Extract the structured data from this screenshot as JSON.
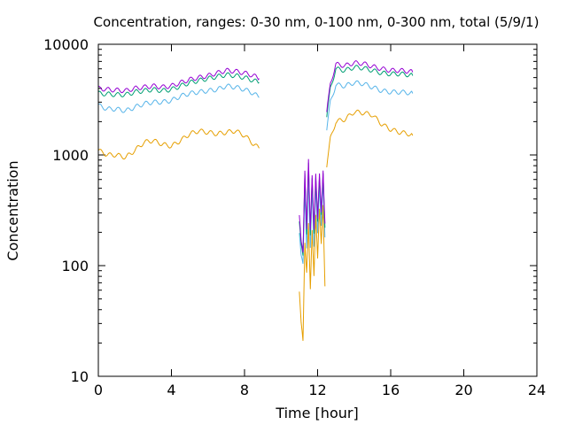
{
  "chart_data": {
    "type": "line",
    "title": "Concentration, ranges: 0-30 nm, 0-100 nm, 0-300 nm, total (5/9/1)",
    "xlabel": "Time [hour]",
    "ylabel": "Concentration",
    "xlim": [
      0,
      24
    ],
    "ylim": [
      10,
      10000
    ],
    "yscale": "log",
    "grid": false,
    "legend": "none",
    "x_ticks": [
      "0",
      "4",
      "8",
      "12",
      "16",
      "20",
      "24"
    ],
    "y_ticks": [
      "10",
      "100",
      "1000",
      "10000"
    ],
    "series": [
      {
        "color": "#e69f00",
        "segments": [
          [
            [
              0,
              1100
            ],
            [
              0.5,
              1000
            ],
            [
              1,
              1000
            ],
            [
              1.5,
              950
            ],
            [
              2,
              1100
            ],
            [
              2.5,
              1300
            ],
            [
              3,
              1350
            ],
            [
              3.5,
              1250
            ],
            [
              4,
              1200
            ],
            [
              4.5,
              1350
            ],
            [
              5,
              1550
            ],
            [
              5.5,
              1650
            ],
            [
              6,
              1600
            ],
            [
              6.5,
              1550
            ],
            [
              7,
              1600
            ],
            [
              7.5,
              1650
            ],
            [
              8,
              1500
            ],
            [
              8.5,
              1250
            ],
            [
              8.8,
              1150
            ]
          ],
          [
            [
              11.0,
              60
            ],
            [
              11.1,
              30
            ],
            [
              11.2,
              20
            ],
            [
              11.3,
              160
            ],
            [
              11.4,
              90
            ],
            [
              11.5,
              250
            ],
            [
              11.6,
              60
            ],
            [
              11.7,
              200
            ],
            [
              11.8,
              80
            ],
            [
              11.9,
              300
            ],
            [
              12.0,
              120
            ],
            [
              12.1,
              320
            ],
            [
              12.2,
              150
            ],
            [
              12.3,
              350
            ],
            [
              12.4,
              65
            ]
          ],
          [
            [
              12.5,
              800
            ],
            [
              12.7,
              1400
            ],
            [
              13.0,
              2000
            ],
            [
              13.5,
              2100
            ],
            [
              14,
              2450
            ],
            [
              14.5,
              2400
            ],
            [
              15,
              2300
            ],
            [
              15.5,
              1900
            ],
            [
              16,
              1700
            ],
            [
              16.5,
              1600
            ],
            [
              17,
              1550
            ],
            [
              17.2,
              1500
            ]
          ]
        ]
      },
      {
        "color": "#56b4e9",
        "segments": [
          [
            [
              0,
              2800
            ],
            [
              0.5,
              2600
            ],
            [
              1,
              2600
            ],
            [
              1.5,
              2500
            ],
            [
              2,
              2700
            ],
            [
              2.5,
              2900
            ],
            [
              3,
              3000
            ],
            [
              3.5,
              3000
            ],
            [
              4,
              3100
            ],
            [
              4.5,
              3400
            ],
            [
              5,
              3600
            ],
            [
              5.5,
              3700
            ],
            [
              6,
              3800
            ],
            [
              6.5,
              3900
            ],
            [
              7,
              4200
            ],
            [
              7.5,
              4100
            ],
            [
              8,
              3900
            ],
            [
              8.5,
              3600
            ],
            [
              8.8,
              3300
            ]
          ],
          [
            [
              11.0,
              200
            ],
            [
              11.1,
              120
            ],
            [
              11.2,
              100
            ],
            [
              11.3,
              500
            ],
            [
              11.4,
              150
            ],
            [
              11.5,
              700
            ],
            [
              11.6,
              140
            ],
            [
              11.7,
              500
            ],
            [
              11.8,
              150
            ],
            [
              11.9,
              550
            ],
            [
              12.0,
              200
            ],
            [
              12.1,
              500
            ],
            [
              12.2,
              220
            ],
            [
              12.3,
              600
            ],
            [
              12.4,
              180
            ]
          ],
          [
            [
              12.5,
              1700
            ],
            [
              12.7,
              3000
            ],
            [
              13.0,
              4300
            ],
            [
              13.5,
              4200
            ],
            [
              14,
              4500
            ],
            [
              14.5,
              4400
            ],
            [
              15,
              4100
            ],
            [
              15.5,
              3800
            ],
            [
              16,
              3700
            ],
            [
              16.5,
              3700
            ],
            [
              17,
              3650
            ],
            [
              17.2,
              3600
            ]
          ]
        ]
      },
      {
        "color": "#009e73",
        "segments": [
          [
            [
              0,
              3600
            ],
            [
              0.5,
              3550
            ],
            [
              1,
              3500
            ],
            [
              1.5,
              3500
            ],
            [
              2,
              3700
            ],
            [
              2.5,
              3800
            ],
            [
              3,
              3900
            ],
            [
              3.5,
              3800
            ],
            [
              4,
              3900
            ],
            [
              4.5,
              4200
            ],
            [
              5,
              4500
            ],
            [
              5.5,
              4700
            ],
            [
              6,
              4900
            ],
            [
              6.5,
              5100
            ],
            [
              7,
              5300
            ],
            [
              7.5,
              5200
            ],
            [
              8,
              5000
            ],
            [
              8.5,
              4700
            ],
            [
              8.8,
              4500
            ]
          ],
          [
            [
              11.0,
              250
            ],
            [
              11.1,
              150
            ],
            [
              11.2,
              120
            ],
            [
              11.3,
              700
            ],
            [
              11.4,
              200
            ],
            [
              11.5,
              850
            ],
            [
              11.6,
              180
            ],
            [
              11.7,
              600
            ],
            [
              11.8,
              200
            ],
            [
              11.9,
              650
            ],
            [
              12.0,
              250
            ],
            [
              12.1,
              600
            ],
            [
              12.2,
              280
            ],
            [
              12.3,
              700
            ],
            [
              12.4,
              220
            ]
          ],
          [
            [
              12.5,
              2200
            ],
            [
              12.7,
              4000
            ],
            [
              13.0,
              6000
            ],
            [
              13.5,
              5800
            ],
            [
              14,
              6200
            ],
            [
              14.5,
              6100
            ],
            [
              15,
              5800
            ],
            [
              15.5,
              5500
            ],
            [
              16,
              5400
            ],
            [
              16.5,
              5400
            ],
            [
              17,
              5300
            ],
            [
              17.2,
              5200
            ]
          ]
        ]
      },
      {
        "color": "#9400d3",
        "segments": [
          [
            [
              0,
              4000
            ],
            [
              0.5,
              3900
            ],
            [
              1,
              3850
            ],
            [
              1.5,
              3800
            ],
            [
              2,
              4000
            ],
            [
              2.5,
              4100
            ],
            [
              3,
              4200
            ],
            [
              3.5,
              4100
            ],
            [
              4,
              4200
            ],
            [
              4.5,
              4500
            ],
            [
              5,
              4800
            ],
            [
              5.5,
              5000
            ],
            [
              6,
              5200
            ],
            [
              6.5,
              5500
            ],
            [
              7,
              5800
            ],
            [
              7.5,
              5700
            ],
            [
              8,
              5500
            ],
            [
              8.5,
              5200
            ],
            [
              8.8,
              4900
            ]
          ],
          [
            [
              11.0,
              280
            ],
            [
              11.1,
              160
            ],
            [
              11.2,
              130
            ],
            [
              11.3,
              750
            ],
            [
              11.4,
              220
            ],
            [
              11.5,
              900
            ],
            [
              11.6,
              200
            ],
            [
              11.7,
              650
            ],
            [
              11.8,
              220
            ],
            [
              11.9,
              700
            ],
            [
              12.0,
              260
            ],
            [
              12.1,
              650
            ],
            [
              12.2,
              300
            ],
            [
              12.3,
              750
            ],
            [
              12.4,
              240
            ]
          ],
          [
            [
              12.5,
              2400
            ],
            [
              12.7,
              4400
            ],
            [
              13.0,
              6600
            ],
            [
              13.5,
              6400
            ],
            [
              14,
              6800
            ],
            [
              14.5,
              6700
            ],
            [
              15,
              6300
            ],
            [
              15.5,
              6000
            ],
            [
              16,
              5800
            ],
            [
              16.5,
              5800
            ],
            [
              17,
              5700
            ],
            [
              17.2,
              5600
            ]
          ]
        ]
      }
    ]
  }
}
